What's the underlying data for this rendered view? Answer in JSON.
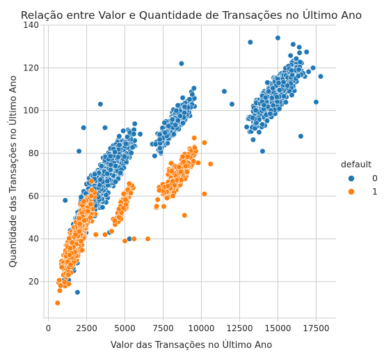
{
  "chart_data": {
    "type": "scatter",
    "title": "Relação entre Valor e Quantidade de Transações no Último Ano",
    "xlabel": "Valor das Transações no Último Ano",
    "ylabel": "Quantidade das Transações no Último Ano",
    "xlim": [
      -300,
      18800
    ],
    "ylim": [
      3,
      140
    ],
    "xticks": [
      0,
      2500,
      5000,
      7500,
      10000,
      12500,
      15000,
      17500
    ],
    "yticks": [
      20,
      40,
      60,
      80,
      100,
      120,
      140
    ],
    "grid": true,
    "legend": {
      "title": "default",
      "placement": "right",
      "labels": [
        "0",
        "1"
      ]
    },
    "colors": {
      "0": "#1f77b4",
      "1": "#ff7f0e"
    },
    "series": [
      {
        "name": "0",
        "clusters": [
          {
            "x_range": [
              900,
              3000
            ],
            "y_range": [
              12,
              75
            ],
            "count": 420
          },
          {
            "x_range": [
              1800,
              6000
            ],
            "y_range": [
              40,
              100
            ],
            "count": 650
          },
          {
            "x_range": [
              6500,
              9800
            ],
            "y_range": [
              75,
              112
            ],
            "count": 300
          },
          {
            "x_range": [
              12500,
              17300
            ],
            "y_range": [
              82,
              134
            ],
            "count": 620
          }
        ],
        "points": [
          [
            1900,
            15
          ],
          [
            1100,
            58
          ],
          [
            3400,
            103
          ],
          [
            6000,
            89
          ],
          [
            8700,
            122
          ],
          [
            11500,
            109
          ],
          [
            12000,
            103
          ],
          [
            13200,
            132
          ],
          [
            14000,
            81
          ],
          [
            15000,
            134
          ],
          [
            17800,
            116
          ],
          [
            17500,
            104
          ],
          [
            16500,
            88
          ],
          [
            5300,
            40
          ],
          [
            4000,
            43
          ],
          [
            3700,
            92
          ],
          [
            2300,
            92
          ],
          [
            2000,
            81
          ],
          [
            17300,
            120
          ],
          [
            16000,
            131
          ]
        ]
      },
      {
        "name": "1",
        "clusters": [
          {
            "x_range": [
              500,
              3200
            ],
            "y_range": [
              10,
              70
            ],
            "count": 450
          },
          {
            "x_range": [
              4000,
              5800
            ],
            "y_range": [
              40,
              72
            ],
            "count": 70
          },
          {
            "x_range": [
              6800,
              10300
            ],
            "y_range": [
              50,
              92
            ],
            "count": 220
          }
        ],
        "points": [
          [
            6500,
            40
          ],
          [
            5600,
            40
          ],
          [
            8900,
            51
          ],
          [
            10200,
            61
          ],
          [
            10200,
            85
          ],
          [
            10600,
            75
          ],
          [
            3100,
            42
          ],
          [
            3700,
            42
          ],
          [
            5000,
            39
          ],
          [
            600,
            10
          ]
        ]
      }
    ]
  }
}
